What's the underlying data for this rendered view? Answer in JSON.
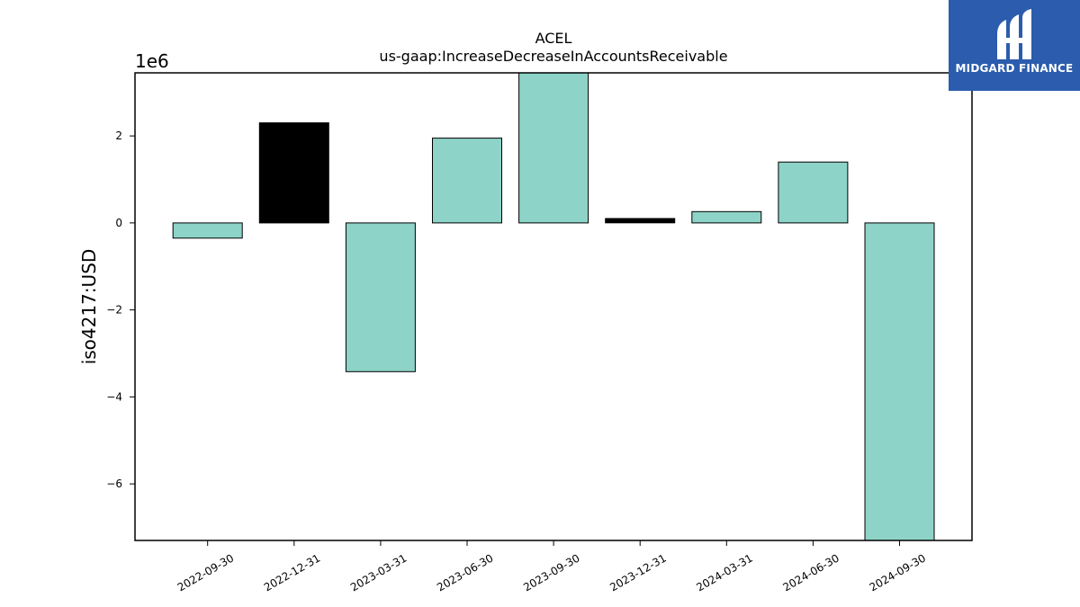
{
  "chart_data": {
    "type": "bar",
    "title": "ACEL",
    "subtitle": "us-gaap:IncreaseDecreaseInAccountsReceivable",
    "ylabel": "iso4217:USD",
    "xlabel": "",
    "offset_text": "1e6",
    "categories": [
      "2022-09-30",
      "2022-12-31",
      "2023-03-31",
      "2023-06-30",
      "2023-09-30",
      "2023-12-31",
      "2024-03-31",
      "2024-06-30",
      "2024-09-30"
    ],
    "values": [
      -350000,
      2300000,
      -3420000,
      1950000,
      3500000,
      100000,
      260000,
      1400000,
      -7500000
    ],
    "bar_colors": [
      "#8dd3c7",
      "#000000",
      "#8dd3c7",
      "#8dd3c7",
      "#8dd3c7",
      "#000000",
      "#8dd3c7",
      "#8dd3c7",
      "#8dd3c7"
    ],
    "ylim": [
      -7300000,
      3450000
    ],
    "yticks": [
      -6000000,
      -4000000,
      -2000000,
      0,
      2000000
    ],
    "ytick_labels": [
      "−6",
      "−4",
      "−2",
      "0",
      "2"
    ],
    "grid": false,
    "colors": {
      "positive_bar": "#8dd3c7",
      "highlight_bar": "#000000",
      "edge": "#000000"
    }
  },
  "logo": {
    "text": "MIDGARD FINANCE",
    "background": "#2b5cad",
    "icon": "midgard-logo-icon"
  }
}
